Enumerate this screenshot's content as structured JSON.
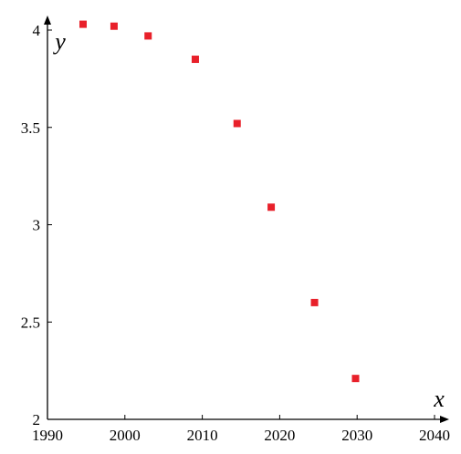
{
  "chart_data": {
    "type": "scatter",
    "title": "",
    "xlabel": "x",
    "ylabel": "y",
    "xlim": [
      1990,
      2040
    ],
    "ylim": [
      2,
      4
    ],
    "x_ticks": [
      "1990",
      "2000",
      "2010",
      "2020",
      "2030",
      "2040"
    ],
    "y_ticks": [
      "2",
      "2.5",
      "3",
      "3.5",
      "4"
    ],
    "grid": false,
    "series": [
      {
        "color": "#e8202a",
        "marker": "square",
        "points": [
          {
            "x": 1994.6,
            "y": 4.03
          },
          {
            "x": 1998.6,
            "y": 4.02
          },
          {
            "x": 2003.0,
            "y": 3.97
          },
          {
            "x": 2009.1,
            "y": 3.85
          },
          {
            "x": 2014.5,
            "y": 3.52
          },
          {
            "x": 2018.9,
            "y": 3.09
          },
          {
            "x": 2024.5,
            "y": 2.6
          },
          {
            "x": 2029.8,
            "y": 2.21
          }
        ]
      }
    ]
  }
}
